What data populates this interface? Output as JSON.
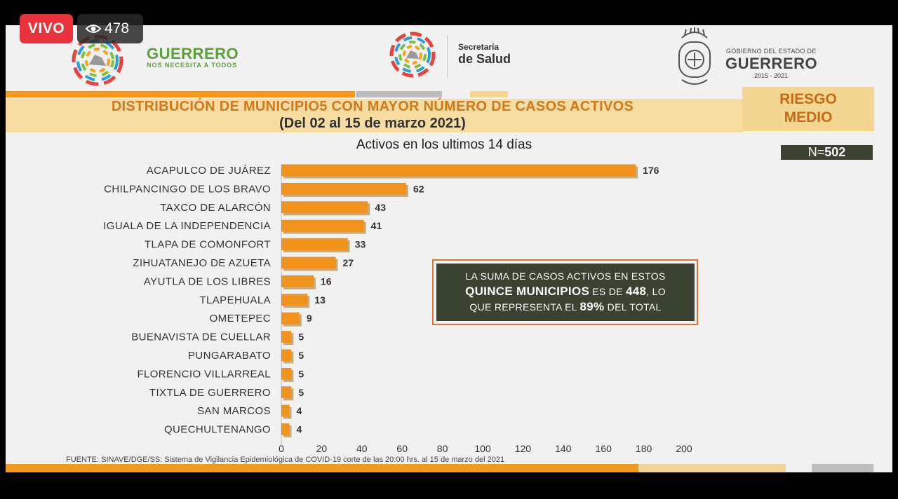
{
  "live": {
    "label": "VIVO",
    "viewers": "478"
  },
  "header": {
    "logo1_name": "GUERRERO",
    "logo1_tagline": "NOS NECESITA A TODOS",
    "logo2_line1": "Secretaría",
    "logo2_line2": "de Salud",
    "logo3_line1": "GOBIERNO DEL ESTADO DE",
    "logo3_line2": "GUERRERO",
    "logo3_years": "2015 - 2021"
  },
  "title": {
    "line1": "DISTRIBUCIÓN DE MUNICIPIO5 CON MAYOR NÚMERO DE  CASOS ACTIVOS",
    "line2": "(Del 02 al 15 de marzo 2021)"
  },
  "risk": {
    "line1": "RIESGO",
    "line2": "MEDIO"
  },
  "n_label": {
    "prefix": "N=",
    "value": "502"
  },
  "callout": {
    "part1": "LA SUMA DE CASOS ACTIVOS EN ESTOS",
    "part2_bold": "QUINCE MUNICIPIOS",
    "part3": " ES DE ",
    "part4_bold": "448",
    "part5": ", LO",
    "part6": "QUE REPRESENTA EL ",
    "part7_bold": "89%",
    "part8": " DEL TOTAL"
  },
  "source": "FUENTE: SINAVE/DGE/SS: Sistema de Vigilancia Epidemiológica de COVID-19 corte de las 20:00 hrs. al 15 de marzo del 2021",
  "colors": {
    "bar": "#f0921b",
    "bar_shadow": "#8a7a44",
    "orange_stripe": "#f39a1e",
    "gray_stripe": "#bdbdbd",
    "beige_stripe": "#f3d691",
    "dark_box": "#3a4232"
  },
  "chart_data": {
    "type": "bar",
    "orientation": "horizontal",
    "title": "Activos en los ultimos 14 días",
    "categories": [
      "ACAPULCO DE JUÁREZ",
      "CHILPANCINGO DE LOS BRAVO",
      "TAXCO DE ALARCÓN",
      "IGUALA DE LA INDEPENDENCIA",
      "TLAPA DE COMONFORT",
      "ZIHUATANEJO DE AZUETA",
      "AYUTLA DE LOS LIBRES",
      "TLAPEHUALA",
      "OMETEPEC",
      "BUENAVISTA DE CUELLAR",
      "PUNGARABATO",
      "FLORENCIO VILLARREAL",
      "TIXTLA DE GUERRERO",
      "SAN MARCOS",
      "QUECHULTENANGO"
    ],
    "values": [
      176,
      62,
      43,
      41,
      33,
      27,
      16,
      13,
      9,
      5,
      5,
      5,
      5,
      4,
      4
    ],
    "xlim": [
      0,
      200
    ],
    "xticks": [
      0,
      20,
      40,
      60,
      80,
      100,
      120,
      140,
      160,
      180,
      200
    ],
    "grid": false,
    "legend": "none"
  }
}
